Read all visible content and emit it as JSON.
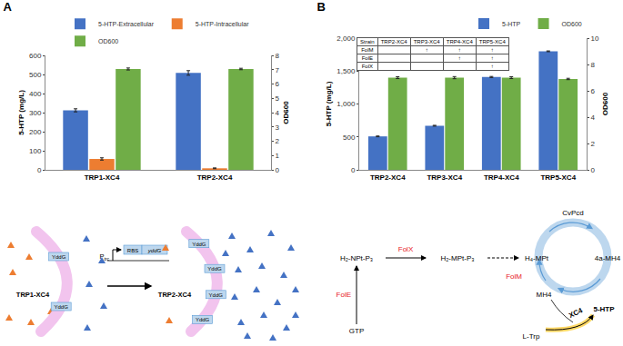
{
  "chart_data": [
    {
      "type": "bar",
      "title": "A",
      "categories": [
        "TRP1-XC4",
        "TRP2-XC4"
      ],
      "series": [
        {
          "name": "5-HTP-Extracellular",
          "color": "#4472C4",
          "values": [
            312,
            508
          ],
          "errors": [
            8,
            12
          ]
        },
        {
          "name": "5-HTP-Intracellular",
          "color": "#ED7D31",
          "values": [
            57,
            8
          ],
          "errors": [
            6,
            2
          ]
        },
        {
          "name": "OD600",
          "color": "#70AD47",
          "values": [
            7.05,
            7.05
          ],
          "errors": [
            0.07,
            0.05
          ],
          "axis": "y2"
        }
      ],
      "ylabel": "5-HTP (mg/L)",
      "y2label": "OD600",
      "ylim": [
        0,
        600
      ],
      "yticks": [
        0,
        100,
        200,
        300,
        400,
        500,
        600
      ],
      "y2lim": [
        0,
        8
      ],
      "y2ticks": [
        0,
        1,
        2,
        3,
        4,
        5,
        6,
        7,
        8
      ],
      "grid": false,
      "legend": "top"
    },
    {
      "type": "bar",
      "title": "B",
      "categories": [
        "TRP2-XC4",
        "TRP3-XC4",
        "TRP4-XC4",
        "TRP5-XC4"
      ],
      "series": [
        {
          "name": "5-HTP",
          "color": "#4472C4",
          "values": [
            508,
            670,
            1410,
            1800
          ],
          "errors": [
            6,
            6,
            8,
            6
          ]
        },
        {
          "name": "OD600",
          "color": "#70AD47",
          "values": [
            7.0,
            7.0,
            7.0,
            6.9
          ],
          "errors": [
            0.07,
            0.08,
            0.07,
            0.05
          ],
          "axis": "y2"
        }
      ],
      "ylabel": "5-HTP (mg/L)",
      "y2label": "OD600",
      "ylim": [
        0,
        2000
      ],
      "yticks": [
        0,
        500,
        {
          "value": 1000,
          "label": "1,000"
        },
        {
          "value": 1500,
          "label": "1,500"
        },
        {
          "value": 2000,
          "label": "2,000"
        }
      ],
      "y2lim": [
        0,
        10
      ],
      "y2ticks": [
        0,
        2,
        4,
        6,
        8,
        10
      ],
      "grid": false,
      "legend": "top right"
    }
  ],
  "inset_table": {
    "header": [
      "Strain",
      "TRP2-XC4",
      "TRP3-XC4",
      "TRP4-XC4",
      "TRP5-XC4"
    ],
    "rows": [
      [
        "FolM",
        null,
        "↑",
        "↑",
        "↑"
      ],
      [
        "FolE",
        null,
        null,
        "↑",
        "↑"
      ],
      [
        "FolX",
        null,
        null,
        null,
        "↑"
      ]
    ]
  },
  "diagrams": {
    "export": {
      "before": "TRP1-XC4",
      "after": "TRP2-XC4",
      "transporter": "YddG",
      "promoter": "P",
      "promoter_sub": "trc",
      "rbs": "RBS",
      "gene": "yddG"
    },
    "pathway": {
      "nodes": {
        "gtp": "GTP",
        "h2npt": "H₂-NPt-P₃",
        "h2mpt": "H₂-MPt-P₃",
        "h4mpt": "H₄-MPt",
        "mh4a": "4a-MH4",
        "mh4": "MH4",
        "ltrp": "L-Trp",
        "htp": "5-HTP"
      },
      "enzymes": {
        "fole": "FolE",
        "folx": "FolX",
        "folm": "FolM",
        "cvpcd": "CvPcd",
        "xc4": "XC4"
      }
    }
  }
}
